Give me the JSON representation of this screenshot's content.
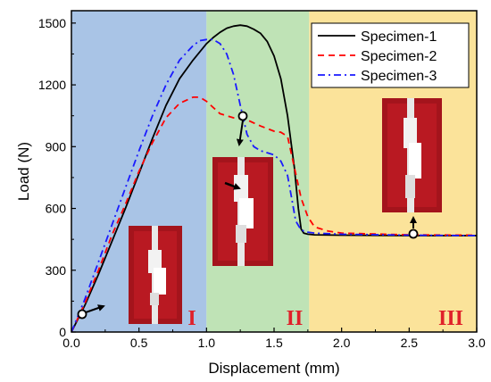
{
  "chart_data": {
    "type": "line",
    "xlabel": "Displacement (mm)",
    "ylabel": "Load (N)",
    "xlim": [
      0,
      3.0
    ],
    "ylim": [
      0,
      1560
    ],
    "x_ticks": [
      "0.0",
      "0.5",
      "1.0",
      "1.5",
      "2.0",
      "2.5",
      "3.0"
    ],
    "x_tick_values": [
      0,
      0.5,
      1.0,
      1.5,
      2.0,
      2.5,
      3.0
    ],
    "y_ticks": [
      "0",
      "300",
      "600",
      "900",
      "1200",
      "1500"
    ],
    "y_tick_values": [
      0,
      300,
      600,
      900,
      1200,
      1500
    ],
    "regions": [
      {
        "label": "I",
        "x_range": [
          0,
          1.0
        ],
        "color": "#a9c4e6"
      },
      {
        "label": "II",
        "x_range": [
          1.0,
          1.76
        ],
        "color": "#bfe3b6"
      },
      {
        "label": "III",
        "x_range": [
          1.76,
          3.0
        ],
        "color": "#fbe39a"
      }
    ],
    "legend_position": "top-right",
    "series": [
      {
        "name": "Specimen-1",
        "color": "#000000",
        "dash": "solid",
        "x": [
          0,
          0.1,
          0.2,
          0.3,
          0.4,
          0.5,
          0.6,
          0.7,
          0.8,
          0.9,
          1.0,
          1.05,
          1.1,
          1.15,
          1.2,
          1.25,
          1.3,
          1.35,
          1.4,
          1.45,
          1.5,
          1.55,
          1.6,
          1.65,
          1.68,
          1.7,
          1.72,
          1.75,
          1.8,
          2.0,
          2.5,
          3.0
        ],
        "y": [
          0,
          130,
          280,
          440,
          600,
          770,
          940,
          1100,
          1230,
          1320,
          1400,
          1430,
          1455,
          1475,
          1485,
          1490,
          1485,
          1470,
          1450,
          1410,
          1340,
          1230,
          1050,
          800,
          600,
          500,
          480,
          475,
          472,
          470,
          468,
          468
        ]
      },
      {
        "name": "Specimen-2",
        "color": "#ff0000",
        "dash": "dashed",
        "x": [
          0,
          0.1,
          0.2,
          0.3,
          0.4,
          0.5,
          0.6,
          0.7,
          0.8,
          0.9,
          0.95,
          1.0,
          1.05,
          1.1,
          1.2,
          1.3,
          1.4,
          1.5,
          1.55,
          1.6,
          1.65,
          1.7,
          1.75,
          1.8,
          1.9,
          2.0,
          2.5,
          3.0
        ],
        "y": [
          0,
          140,
          300,
          470,
          620,
          780,
          920,
          1040,
          1110,
          1140,
          1140,
          1120,
          1090,
          1060,
          1040,
          1030,
          1000,
          975,
          970,
          950,
          800,
          650,
          560,
          510,
          490,
          480,
          472,
          470
        ]
      },
      {
        "name": "Specimen-3",
        "color": "#1a1aff",
        "dash": "dashdot",
        "x": [
          0,
          0.1,
          0.2,
          0.3,
          0.4,
          0.5,
          0.6,
          0.7,
          0.8,
          0.9,
          0.95,
          1.0,
          1.05,
          1.1,
          1.15,
          1.2,
          1.25,
          1.3,
          1.35,
          1.4,
          1.5,
          1.55,
          1.6,
          1.63,
          1.66,
          1.7,
          1.75,
          1.8,
          2.0,
          2.5,
          3.0
        ],
        "y": [
          0,
          160,
          340,
          520,
          700,
          880,
          1050,
          1200,
          1320,
          1390,
          1415,
          1420,
          1420,
          1400,
          1350,
          1250,
          1100,
          960,
          900,
          880,
          860,
          830,
          760,
          650,
          540,
          495,
          485,
          480,
          475,
          470,
          468
        ]
      }
    ]
  }
}
